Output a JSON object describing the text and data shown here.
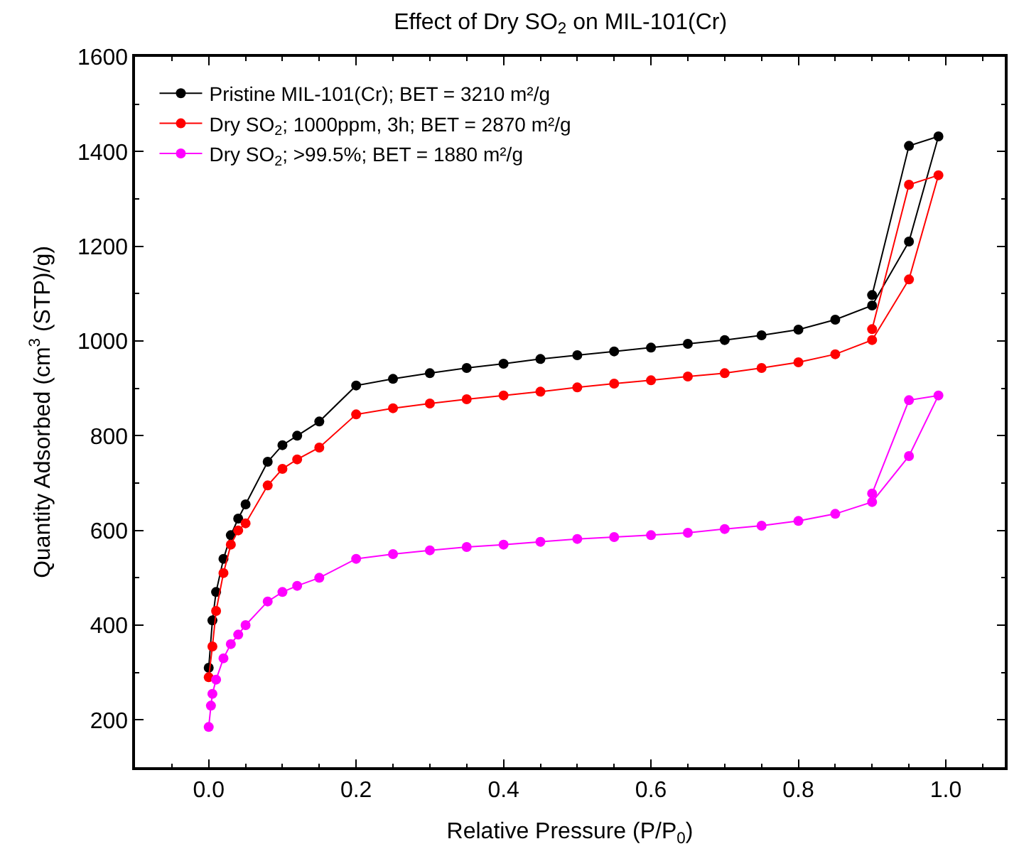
{
  "chart_data": {
    "type": "line",
    "title": "Effect of Dry SO$_{2}$ on MIL-101(Cr)",
    "xlabel": "Relative Pressure (P/P$_{0}$)",
    "ylabel": "Quantity Adsorbed (cm$^{3}$ (STP)/g)",
    "xlim": [
      -0.1,
      1.08
    ],
    "xticks": [
      {
        "value": 0,
        "label": "0.0"
      },
      {
        "value": 0.2,
        "label": "0.2"
      },
      {
        "value": 0.4,
        "label": "0.4"
      },
      {
        "value": 0.6,
        "label": "0.6"
      },
      {
        "value": 0.8,
        "label": "0.8"
      },
      {
        "value": 1,
        "label": "1.0"
      }
    ],
    "ylim": [
      100,
      1600
    ],
    "yticks": [
      200,
      400,
      600,
      800,
      1000,
      1200,
      1400,
      1600
    ],
    "legend": "top left",
    "marker": "circle",
    "line_style": "solid",
    "series": [
      {
        "name": "Pristine MIL-101(Cr); BET = 3210 m²/g",
        "color": "#000000",
        "x": [
          0,
          0.005,
          0.01,
          0.02,
          0.03,
          0.04,
          0.05,
          0.08,
          0.1,
          0.12,
          0.15,
          0.2,
          0.25,
          0.3,
          0.35,
          0.4,
          0.45,
          0.5,
          0.55,
          0.6,
          0.65,
          0.7,
          0.75,
          0.8,
          0.85,
          0.9,
          0.95,
          0.99,
          0.95,
          0.9
        ],
        "values": [
          310,
          410,
          470,
          540,
          590,
          625,
          655,
          745,
          780,
          800,
          830,
          906,
          920,
          932,
          943,
          952,
          962,
          970,
          978,
          986,
          994,
          1002,
          1012,
          1024,
          1045,
          1075,
          1210,
          1432,
          1412,
          1097
        ]
      },
      {
        "name": "Dry SO$_{2}$; 1000ppm, 3h; BET = 2870 m²/g",
        "color": "#ff0000",
        "x": [
          0,
          0.005,
          0.01,
          0.02,
          0.03,
          0.04,
          0.05,
          0.08,
          0.1,
          0.12,
          0.15,
          0.2,
          0.25,
          0.3,
          0.35,
          0.4,
          0.45,
          0.5,
          0.55,
          0.6,
          0.65,
          0.7,
          0.75,
          0.8,
          0.85,
          0.9,
          0.95,
          0.99,
          0.95,
          0.9
        ],
        "values": [
          290,
          355,
          430,
          510,
          570,
          600,
          615,
          695,
          730,
          750,
          775,
          845,
          858,
          868,
          877,
          885,
          893,
          902,
          910,
          917,
          925,
          932,
          943,
          955,
          972,
          1002,
          1130,
          1350,
          1330,
          1025
        ]
      },
      {
        "name": "Dry SO$_{2}$; >99.5%; BET = 1880 m²/g",
        "color": "#ff00ff",
        "x": [
          0,
          0.003,
          0.005,
          0.01,
          0.02,
          0.03,
          0.04,
          0.05,
          0.08,
          0.1,
          0.12,
          0.15,
          0.2,
          0.25,
          0.3,
          0.35,
          0.4,
          0.45,
          0.5,
          0.55,
          0.6,
          0.65,
          0.7,
          0.75,
          0.8,
          0.85,
          0.9,
          0.95,
          0.99,
          0.95,
          0.9
        ],
        "values": [
          185,
          230,
          255,
          285,
          330,
          360,
          380,
          400,
          450,
          470,
          483,
          500,
          540,
          550,
          558,
          565,
          570,
          576,
          582,
          586,
          590,
          595,
          603,
          610,
          620,
          635,
          660,
          757,
          885,
          875,
          678
        ]
      }
    ]
  }
}
